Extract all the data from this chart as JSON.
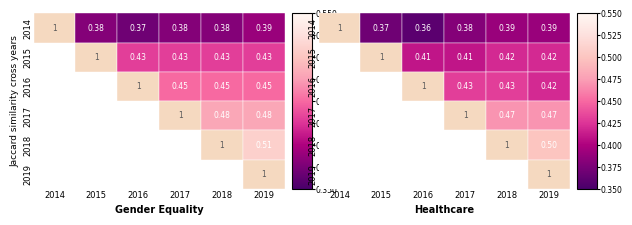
{
  "years": [
    "2014",
    "2015",
    "2016",
    "2017",
    "2018",
    "2019"
  ],
  "gender_equality": {
    "matrix": [
      [
        1.0,
        0.38,
        0.37,
        0.38,
        0.38,
        0.39
      ],
      [
        null,
        1.0,
        0.43,
        0.43,
        0.43,
        0.43
      ],
      [
        null,
        null,
        1.0,
        0.45,
        0.45,
        0.45
      ],
      [
        null,
        null,
        null,
        1.0,
        0.48,
        0.48
      ],
      [
        null,
        null,
        null,
        null,
        1.0,
        0.51
      ],
      [
        null,
        null,
        null,
        null,
        null,
        1.0
      ]
    ],
    "title": "Gender Equality"
  },
  "healthcare": {
    "matrix": [
      [
        1.0,
        0.37,
        0.36,
        0.38,
        0.39,
        0.39
      ],
      [
        null,
        1.0,
        0.41,
        0.41,
        0.42,
        0.42
      ],
      [
        null,
        null,
        1.0,
        0.43,
        0.43,
        0.42
      ],
      [
        null,
        null,
        null,
        1.0,
        0.47,
        0.47
      ],
      [
        null,
        null,
        null,
        null,
        1.0,
        0.5
      ],
      [
        null,
        null,
        null,
        null,
        null,
        1.0
      ]
    ],
    "title": "Healthcare"
  },
  "vmin": 0.35,
  "vmax": 0.55,
  "cbar_ticks": [
    0.35,
    0.375,
    0.4,
    0.425,
    0.45,
    0.475,
    0.5,
    0.525,
    0.55
  ],
  "ylabel": "Jaccard similarity cross years",
  "diag_color": "#f5d9c0",
  "text_color_dark": "#5a5a5a",
  "text_color_light": "white"
}
